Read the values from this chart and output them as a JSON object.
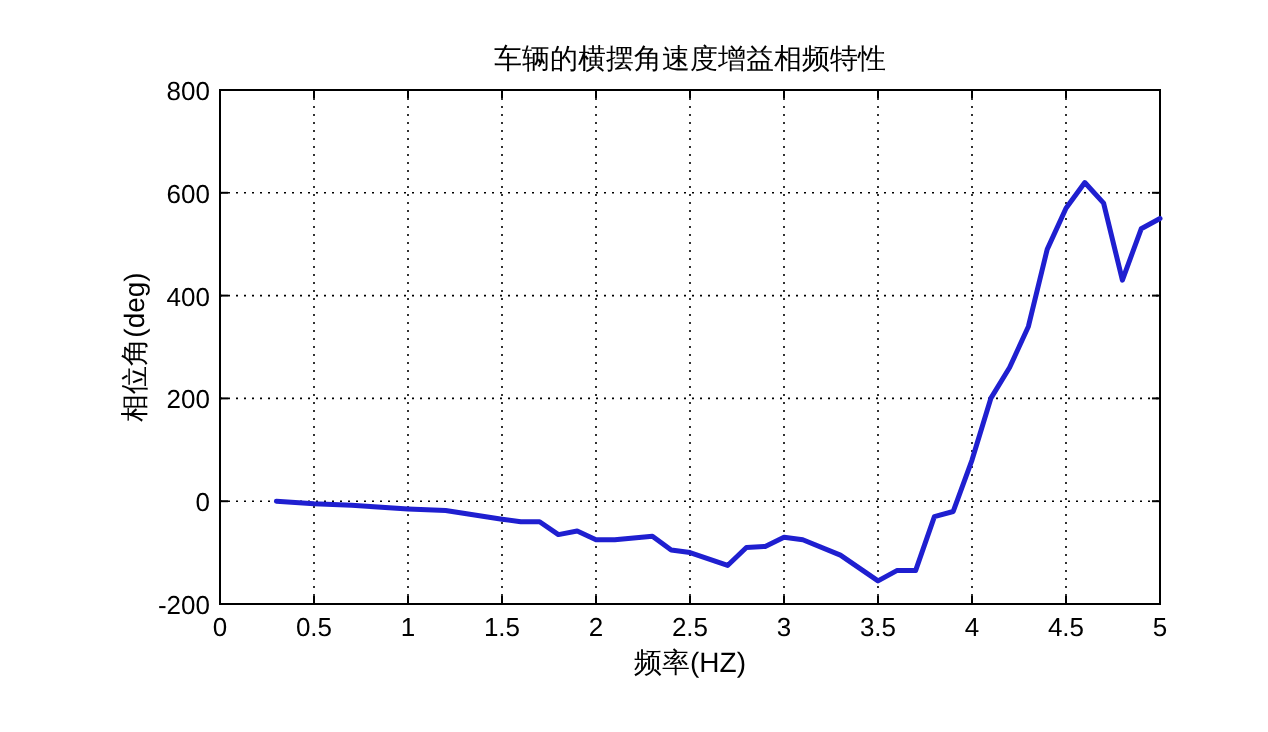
{
  "chart_data": {
    "type": "line",
    "title": "车辆的横摆角速度增益相频特性",
    "xlabel": "频率(HZ)",
    "ylabel": "相位角(deg)",
    "xlim": [
      0,
      5
    ],
    "ylim": [
      -200,
      800
    ],
    "xticks": [
      0,
      0.5,
      1,
      1.5,
      2,
      2.5,
      3,
      3.5,
      4,
      4.5,
      5
    ],
    "yticks": [
      -200,
      0,
      200,
      400,
      600,
      800
    ],
    "grid": true,
    "x": [
      0.3,
      0.5,
      0.7,
      1.0,
      1.2,
      1.5,
      1.6,
      1.7,
      1.8,
      1.9,
      2.0,
      2.1,
      2.3,
      2.4,
      2.5,
      2.7,
      2.8,
      2.9,
      3.0,
      3.1,
      3.3,
      3.5,
      3.6,
      3.7,
      3.8,
      3.9,
      4.0,
      4.1,
      4.2,
      4.3,
      4.4,
      4.5,
      4.6,
      4.7,
      4.8,
      4.9,
      5.0
    ],
    "series": [
      {
        "color": "#1f1fd0",
        "values": [
          0,
          -5,
          -8,
          -15,
          -18,
          -35,
          -40,
          -40,
          -65,
          -58,
          -75,
          -75,
          -68,
          -95,
          -100,
          -125,
          -90,
          -88,
          -70,
          -75,
          -105,
          -155,
          -135,
          -135,
          -30,
          -20,
          80,
          200,
          260,
          340,
          490,
          570,
          620,
          580,
          430,
          530,
          550
        ]
      }
    ]
  }
}
